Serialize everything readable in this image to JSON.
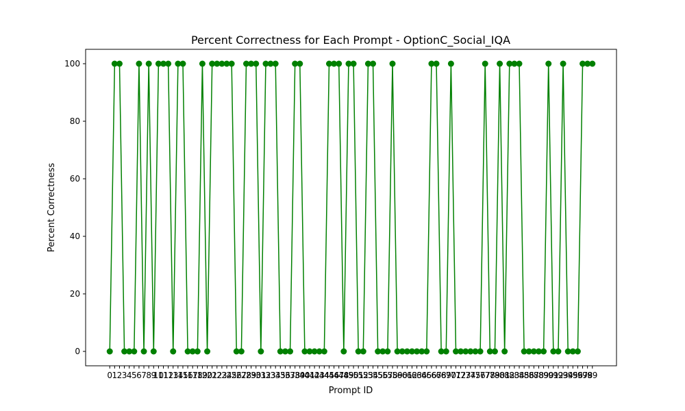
{
  "chart_data": {
    "type": "line",
    "title": "Percent Correctness for Each Prompt - OptionC_Social_IQA",
    "xlabel": "Prompt ID",
    "ylabel": "Percent Correctness",
    "ylim": [
      -5,
      105
    ],
    "yticks": [
      0,
      20,
      40,
      60,
      80,
      100
    ],
    "x": [
      0,
      1,
      2,
      3,
      4,
      5,
      6,
      7,
      8,
      9,
      10,
      11,
      12,
      13,
      14,
      15,
      16,
      17,
      18,
      19,
      20,
      21,
      22,
      23,
      24,
      25,
      26,
      27,
      28,
      29,
      30,
      31,
      32,
      33,
      34,
      35,
      36,
      37,
      38,
      39,
      40,
      41,
      42,
      43,
      44,
      45,
      46,
      47,
      48,
      49,
      50,
      51,
      52,
      53,
      54,
      55,
      56,
      57,
      58,
      59,
      60,
      61,
      62,
      63,
      64,
      65,
      66,
      67,
      68,
      69,
      70,
      71,
      72,
      73,
      74,
      75,
      76,
      77,
      78,
      79,
      80,
      81,
      82,
      83,
      84,
      85,
      86,
      87,
      88,
      89,
      90,
      91,
      92,
      93,
      94,
      95,
      96,
      97,
      98,
      99
    ],
    "series": [
      {
        "color": "#008000",
        "values": [
          0,
          100,
          100,
          0,
          0,
          0,
          100,
          0,
          100,
          0,
          100,
          100,
          100,
          0,
          100,
          100,
          0,
          0,
          0,
          100,
          0,
          100,
          100,
          100,
          100,
          100,
          0,
          0,
          100,
          100,
          100,
          0,
          100,
          100,
          100,
          0,
          0,
          0,
          100,
          100,
          0,
          0,
          0,
          0,
          0,
          100,
          100,
          100,
          0,
          100,
          100,
          0,
          0,
          100,
          100,
          0,
          0,
          0,
          100,
          0,
          0,
          0,
          0,
          0,
          0,
          0,
          100,
          100,
          0,
          0,
          100,
          0,
          0,
          0,
          0,
          0,
          0,
          100,
          0,
          0,
          100,
          0,
          100,
          100,
          100,
          0,
          0,
          0,
          0,
          0,
          100,
          0,
          0,
          100,
          0,
          0,
          0,
          100,
          100,
          100
        ]
      }
    ],
    "grid": false
  }
}
